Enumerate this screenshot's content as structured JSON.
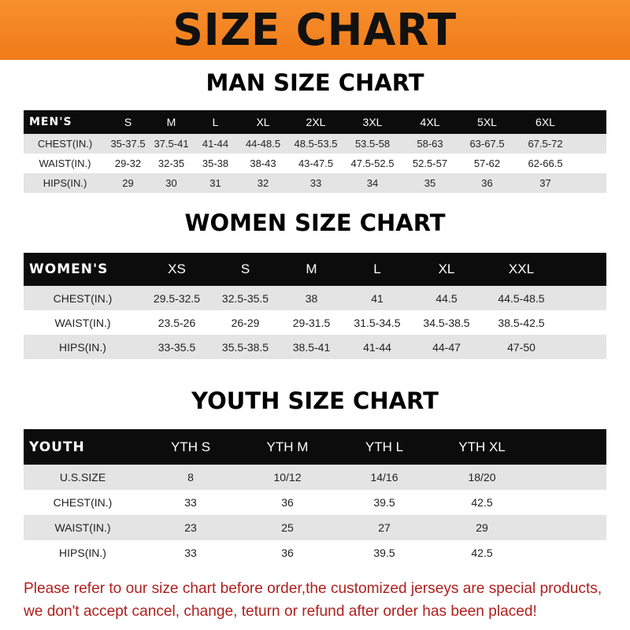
{
  "banner": {
    "title": "SIZE CHART",
    "color": "#f47f1f"
  },
  "men": {
    "title": "MAN SIZE CHART",
    "header": [
      "MEN'S",
      "S",
      "M",
      "L",
      "XL",
      "2XL",
      "3XL",
      "4XL",
      "5XL",
      "6XL"
    ],
    "rows": [
      [
        "CHEST(IN.)",
        "35-37.5",
        "37.5-41",
        "41-44",
        "44-48.5",
        "48.5-53.5",
        "53.5-58",
        "58-63",
        "63-67.5",
        "67.5-72"
      ],
      [
        "WAIST(IN.)",
        "29-32",
        "32-35",
        "35-38",
        "38-43",
        "43-47.5",
        "47.5-52.5",
        "52.5-57",
        "57-62",
        "62-66.5"
      ],
      [
        "HIPS(IN.)",
        "29",
        "30",
        "31",
        "32",
        "33",
        "34",
        "35",
        "36",
        "37"
      ]
    ]
  },
  "women": {
    "title": "WOMEN SIZE CHART",
    "header": [
      "WOMEN'S",
      "XS",
      "S",
      "M",
      "L",
      "XL",
      "XXL"
    ],
    "rows": [
      [
        "CHEST(IN.)",
        "29.5-32.5",
        "32.5-35.5",
        "38",
        "41",
        "44.5",
        "44.5-48.5"
      ],
      [
        "WAIST(IN.)",
        "23.5-26",
        "26-29",
        "29-31.5",
        "31.5-34.5",
        "34.5-38.5",
        "38.5-42.5"
      ],
      [
        "HIPS(IN.)",
        "33-35.5",
        "35.5-38.5",
        "38.5-41",
        "41-44",
        "44-47",
        "47-50"
      ]
    ]
  },
  "youth": {
    "title": "YOUTH SIZE CHART",
    "header": [
      "YOUTH",
      "YTH S",
      "YTH M",
      "YTH L",
      "YTH XL"
    ],
    "rows": [
      [
        "U.S.SIZE",
        "8",
        "10/12",
        "14/16",
        "18/20"
      ],
      [
        "CHEST(IN.)",
        "33",
        "36",
        "39.5",
        "42.5"
      ],
      [
        "WAIST(IN.)",
        "23",
        "25",
        "27",
        "29"
      ],
      [
        "HIPS(IN.)",
        "33",
        "36",
        "39.5",
        "42.5"
      ]
    ]
  },
  "footer": {
    "line1": "Please refer to our size chart before order,the customized jerseys are special products,",
    "line2": "we don't accept cancel, change, teturn or refund after order has been placed!",
    "color": "#b0201e"
  }
}
